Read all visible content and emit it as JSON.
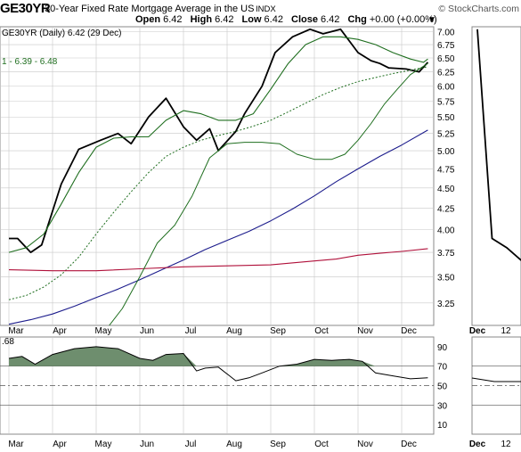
{
  "header": {
    "symbol": "GE30YR",
    "description": "30-Year Fixed Rate Mortgage Average in the US",
    "exchange": "INDX",
    "brand": "© StockCharts.com",
    "open_label": "Open",
    "open": "6.42",
    "high_label": "High",
    "high": "6.42",
    "low_label": "Low",
    "low": "6.42",
    "close_label": "Close",
    "close": "6.42",
    "chg_label": "Chg",
    "chg": "+0.00 (+0.00%)",
    "arrow": "▼"
  },
  "colors": {
    "price": "#000000",
    "sma_fast": "#1f6e1f",
    "sma_mid": "#1f6e1f",
    "sma_slow": "#1c1c8c",
    "sma_long": "#b0103a",
    "rsi_fill": "#6e8e6e",
    "grid": "#c8c8c8"
  },
  "chart_data": [
    {
      "type": "line",
      "legend_title": "GE30YR (Daily) 6.42 (29 Dec)",
      "legend_bands": "1 - 6.39 - 6.48",
      "x_labels": [
        "Mar",
        "Apr",
        "May",
        "Jun",
        "Jul",
        "Aug",
        "Sep",
        "Oct",
        "Nov",
        "Dec"
      ],
      "y_ticks": [
        "7.00",
        "6.75",
        "6.50",
        "6.25",
        "6.00",
        "5.75",
        "5.50",
        "5.25",
        "5.00",
        "4.75",
        "4.50",
        "4.25",
        "4.00",
        "3.75",
        "3.50",
        "3.25"
      ],
      "ylim": [
        3.05,
        7.1
      ],
      "log_scale": true,
      "series": [
        {
          "key": "price",
          "x": [
            0,
            0.2,
            0.5,
            0.75,
            1.2,
            1.6,
            2.1,
            2.5,
            2.8,
            3.2,
            3.6,
            4.0,
            4.3,
            4.6,
            4.8,
            5.2,
            5.4,
            5.8,
            6.1,
            6.5,
            6.9,
            7.2,
            7.6,
            8.0,
            8.3,
            8.5,
            8.7,
            9.1,
            9.4,
            9.6
          ],
          "y": [
            3.9,
            3.9,
            3.75,
            3.83,
            4.55,
            5.02,
            5.15,
            5.25,
            5.1,
            5.5,
            5.8,
            5.35,
            5.15,
            5.32,
            5.0,
            5.28,
            5.55,
            6.0,
            6.6,
            6.9,
            7.05,
            6.96,
            7.05,
            6.6,
            6.45,
            6.4,
            6.32,
            6.3,
            6.25,
            6.42
          ]
        },
        {
          "key": "sma_fast",
          "x": [
            0,
            0.4,
            0.8,
            1.2,
            1.6,
            2.0,
            2.4,
            2.8,
            3.2,
            3.6,
            4.0,
            4.4,
            4.8,
            5.2,
            5.6,
            6.0,
            6.4,
            6.8,
            7.2,
            7.6,
            8.0,
            8.4,
            8.8,
            9.2,
            9.5,
            9.6
          ],
          "y": [
            3.75,
            3.8,
            3.95,
            4.3,
            4.7,
            5.05,
            5.18,
            5.2,
            5.2,
            5.45,
            5.6,
            5.55,
            5.45,
            5.45,
            5.55,
            5.95,
            6.4,
            6.75,
            6.9,
            6.9,
            6.85,
            6.75,
            6.6,
            6.48,
            6.42,
            6.48
          ]
        },
        {
          "key": "sma_mid",
          "x": [
            0,
            0.4,
            0.8,
            1.2,
            1.6,
            2.0,
            2.4,
            2.8,
            3.2,
            3.6,
            4.0,
            4.4,
            4.8,
            5.2,
            5.6,
            6.0,
            6.4,
            6.8,
            7.2,
            7.6,
            8.0,
            8.4,
            8.8,
            9.2,
            9.6
          ],
          "y": [
            3.28,
            3.32,
            3.4,
            3.52,
            3.7,
            3.95,
            4.2,
            4.45,
            4.7,
            4.92,
            5.05,
            5.15,
            5.22,
            5.28,
            5.36,
            5.45,
            5.58,
            5.72,
            5.86,
            5.98,
            6.08,
            6.15,
            6.22,
            6.28,
            6.34
          ]
        },
        {
          "key": "sma_slow",
          "x": [
            0,
            0.5,
            1.0,
            1.5,
            2.0,
            2.5,
            3.0,
            3.5,
            4.0,
            4.5,
            5.0,
            5.5,
            6.0,
            6.5,
            7.0,
            7.5,
            8.0,
            8.5,
            9.0,
            9.6
          ],
          "y": [
            3.06,
            3.1,
            3.15,
            3.22,
            3.3,
            3.38,
            3.47,
            3.57,
            3.67,
            3.78,
            3.88,
            3.98,
            4.1,
            4.24,
            4.4,
            4.58,
            4.75,
            4.92,
            5.08,
            5.3
          ]
        },
        {
          "key": "sma_long",
          "x": [
            0,
            1,
            2,
            3,
            4,
            5,
            6,
            7,
            7.5,
            8,
            8.5,
            9,
            9.6
          ],
          "y": [
            3.57,
            3.56,
            3.56,
            3.58,
            3.6,
            3.61,
            3.62,
            3.66,
            3.68,
            3.72,
            3.74,
            3.76,
            3.79
          ]
        },
        {
          "key": "sma_200",
          "x": [
            2.3,
            2.6,
            3.0,
            3.4,
            3.8,
            4.2,
            4.6,
            5.0,
            5.4,
            5.8,
            6.2,
            6.6,
            7.0,
            7.4,
            7.7,
            8.0,
            8.3,
            8.6,
            8.9,
            9.2,
            9.6
          ],
          "y": [
            3.05,
            3.2,
            3.5,
            3.85,
            4.05,
            4.4,
            4.9,
            5.1,
            5.12,
            5.12,
            5.1,
            4.95,
            4.88,
            4.88,
            4.95,
            5.15,
            5.4,
            5.7,
            5.95,
            6.2,
            6.4
          ]
        }
      ]
    },
    {
      "type": "area",
      "legend_title": ".68",
      "x_labels": [
        "Mar",
        "Apr",
        "May",
        "Jun",
        "Jul",
        "Aug",
        "Sep",
        "Oct",
        "Nov",
        "Dec"
      ],
      "y_ticks": [
        "90",
        "70",
        "50",
        "30",
        "10"
      ],
      "ylim": [
        0,
        100
      ],
      "threshold": 70,
      "x": [
        0,
        0.3,
        0.6,
        1.0,
        1.5,
        2.0,
        2.5,
        3.0,
        3.3,
        3.6,
        4.0,
        4.3,
        4.5,
        4.8,
        5.2,
        5.5,
        5.8,
        6.2,
        6.6,
        7.0,
        7.4,
        7.8,
        8.1,
        8.4,
        8.8,
        9.2,
        9.6
      ],
      "values": [
        78,
        80,
        72,
        82,
        88,
        90,
        88,
        78,
        76,
        82,
        83,
        65,
        68,
        69,
        55,
        58,
        63,
        70,
        72,
        77,
        76,
        77,
        75,
        63,
        60,
        57,
        58
      ]
    },
    {
      "type": "line",
      "legend_title": "",
      "x_labels": [
        "Dec",
        "12"
      ],
      "y_ticks": [],
      "ylim": [
        3.05,
        7.1
      ],
      "x": [
        0,
        0.3,
        0.6,
        1.0
      ],
      "y": [
        7.05,
        3.9,
        3.8,
        3.62
      ]
    }
  ]
}
